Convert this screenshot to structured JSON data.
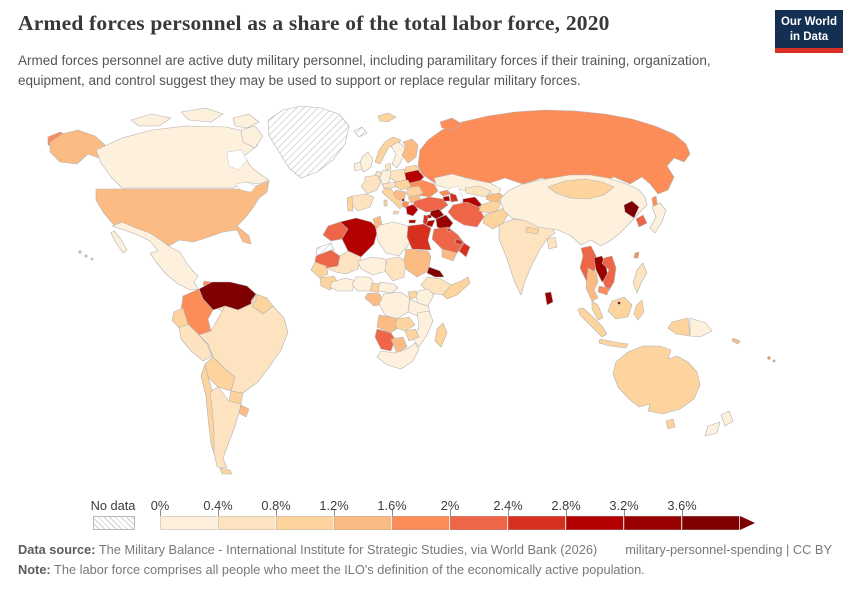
{
  "header": {
    "title": "Armed forces personnel as a share of the total labor force, 2020",
    "subtitle": "Armed forces personnel are active duty military personnel, including paramilitary forces if their training, organization, equipment, and control suggest they may be used to support or replace regular military forces.",
    "logo": {
      "line1": "Our World",
      "line2": "in Data",
      "bg": "#132f52",
      "accent": "#d93025"
    }
  },
  "legend": {
    "no_data_label": "No data",
    "tick_labels": [
      "0%",
      "0.4%",
      "0.8%",
      "1.2%",
      "1.6%",
      "2%",
      "2.4%",
      "2.8%",
      "3.2%",
      "3.6%"
    ],
    "colors": [
      "#fdf0dc",
      "#fde3c0",
      "#fdd49e",
      "#fdbb84",
      "#fc8d59",
      "#ef6548",
      "#d7301f",
      "#b30000",
      "#990000",
      "#7f0000"
    ]
  },
  "footer": {
    "source_prefix": "Data source:",
    "source_text": " The Military Balance - International Institute for Strategic Studies, via World Bank (2026)",
    "rights": "military-personnel-spending | CC BY",
    "note_prefix": "Note:",
    "note_text": " The labor force comprises all people who meet the ILO's definition of the economically active population."
  },
  "chart_data": {
    "type": "heatmap",
    "variant": "choropleth-world-map",
    "title": "Armed forces personnel as a share of the total labor force, 2020",
    "unit": "% of total labor force",
    "bins": [
      "0–0.4%",
      "0.4–0.8%",
      "0.8–1.2%",
      "1.2–1.6%",
      "1.6–2%",
      "2–2.4%",
      "2.4–2.8%",
      "2.8–3.2%",
      "3.2–3.6%",
      "3.6%+"
    ],
    "legend_position": "bottom",
    "no_data_pattern": "diagonal-hatch",
    "regions": {
      "russia": {
        "name": "Russia",
        "bin": 4
      },
      "canada": {
        "name": "Canada",
        "bin": 0
      },
      "greenland": {
        "name": "Greenland",
        "no_data": true
      },
      "iceland": {
        "name": "Iceland",
        "no_data": true
      },
      "alaska": {
        "name": "United States (Alaska)",
        "bin": 3
      },
      "usa": {
        "name": "United States",
        "bin": 3
      },
      "mexico": {
        "name": "Mexico",
        "bin": 0
      },
      "central-america": {
        "name": "Central America",
        "bin": 1
      },
      "el-salvador": {
        "name": "El Salvador",
        "bin": 4
      },
      "cuba": {
        "name": "Cuba",
        "bin": 4
      },
      "hispaniola": {
        "name": "Haiti / Dominican Republic",
        "bin": 2
      },
      "lesser-antilles": {
        "name": "Lesser Antilles",
        "bin": 2
      },
      "venezuela": {
        "name": "Venezuela",
        "bin": 9
      },
      "colombia": {
        "name": "Colombia",
        "bin": 4
      },
      "guyanas": {
        "name": "Guyana / Suriname",
        "bin": 2
      },
      "ecuador": {
        "name": "Ecuador",
        "bin": 2
      },
      "peru": {
        "name": "Peru",
        "bin": 1
      },
      "brazil": {
        "name": "Brazil",
        "bin": 1
      },
      "bolivia": {
        "name": "Bolivia",
        "bin": 2
      },
      "paraguay": {
        "name": "Paraguay",
        "bin": 2
      },
      "uruguay": {
        "name": "Uruguay",
        "bin": 3
      },
      "chile": {
        "name": "Chile",
        "bin": 2
      },
      "argentina": {
        "name": "Argentina",
        "bin": 1
      },
      "uk": {
        "name": "United Kingdom",
        "bin": 0
      },
      "ireland": {
        "name": "Ireland",
        "bin": 0
      },
      "norway": {
        "name": "Norway",
        "bin": 2
      },
      "sweden": {
        "name": "Sweden",
        "bin": 0
      },
      "finland": {
        "name": "Finland",
        "bin": 3
      },
      "denmark": {
        "name": "Denmark",
        "bin": 1
      },
      "baltics": {
        "name": "Baltic states",
        "bin": 2
      },
      "belarus": {
        "name": "Belarus",
        "bin": 7
      },
      "ukraine": {
        "name": "Ukraine",
        "bin": 4
      },
      "poland": {
        "name": "Poland",
        "bin": 1
      },
      "germany": {
        "name": "Germany",
        "bin": 0
      },
      "benelux": {
        "name": "Benelux",
        "bin": 1
      },
      "france": {
        "name": "France",
        "bin": 1
      },
      "spain": {
        "name": "Spain",
        "bin": 1
      },
      "portugal": {
        "name": "Portugal",
        "bin": 2
      },
      "italy": {
        "name": "Italy",
        "bin": 2
      },
      "alpine": {
        "name": "Switzerland / Austria",
        "bin": 1
      },
      "central-europe": {
        "name": "Czechia / Slovakia / Hungary",
        "bin": 2
      },
      "romania": {
        "name": "Romania",
        "bin": 2
      },
      "bulgaria": {
        "name": "Bulgaria",
        "bin": 3
      },
      "balkans": {
        "name": "Serbia / Bosnia / Croatia",
        "bin": 3
      },
      "albania": {
        "name": "Albania / North Macedonia",
        "bin": 4
      },
      "montenegro": {
        "name": "Montenegro",
        "bin": 9
      },
      "greece": {
        "name": "Greece",
        "bin": 7
      },
      "kazakhstan": {
        "name": "Kazakhstan",
        "bin": 0
      },
      "uzbekistan": {
        "name": "Uzbekistan",
        "bin": 1
      },
      "kyrgyzstan": {
        "name": "Kyrgyzstan / Tajikistan",
        "bin": 3
      },
      "turkmenistan": {
        "name": "Turkmenistan",
        "bin": 7
      },
      "turkey": {
        "name": "Turkey",
        "bin": 5
      },
      "cyprus": {
        "name": "Cyprus",
        "bin": 7
      },
      "georgia": {
        "name": "Georgia",
        "bin": 4
      },
      "armenia": {
        "name": "Armenia",
        "bin": 7
      },
      "azerbaijan": {
        "name": "Azerbaijan",
        "bin": 6
      },
      "syria": {
        "name": "Syria",
        "bin": 8
      },
      "iraq": {
        "name": "Iraq",
        "bin": 8
      },
      "lebanon-israel": {
        "name": "Israel / Lebanon",
        "bin": 6
      },
      "jordan": {
        "name": "Jordan",
        "bin": 7
      },
      "iran": {
        "name": "Iran",
        "bin": 5
      },
      "saudi-arabia": {
        "name": "Saudi Arabia",
        "bin": 5
      },
      "yemen": {
        "name": "Yemen",
        "bin": 3
      },
      "oman": {
        "name": "Oman",
        "bin": 6
      },
      "uae": {
        "name": "United Arab Emirates",
        "bin": 6
      },
      "kuwait": {
        "name": "Kuwait",
        "bin": 6
      },
      "morocco": {
        "name": "Morocco",
        "bin": 5
      },
      "western-sahara": {
        "name": "Western Sahara",
        "no_data": true
      },
      "algeria": {
        "name": "Algeria",
        "bin": 7
      },
      "tunisia": {
        "name": "Tunisia",
        "bin": 3
      },
      "libya": {
        "name": "Libya",
        "bin": 0
      },
      "egypt": {
        "name": "Egypt",
        "bin": 6
      },
      "mauritania": {
        "name": "Mauritania",
        "bin": 5
      },
      "mali": {
        "name": "Mali",
        "bin": 1
      },
      "niger": {
        "name": "Niger",
        "bin": 0
      },
      "chad": {
        "name": "Chad",
        "bin": 1
      },
      "sudan": {
        "name": "Sudan",
        "bin": 3
      },
      "eritrea": {
        "name": "Eritrea",
        "bin": 9
      },
      "ethiopia": {
        "name": "Ethiopia",
        "bin": 1
      },
      "somalia": {
        "name": "Somalia",
        "bin": 2
      },
      "senegal": {
        "name": "Senegal",
        "bin": 2
      },
      "guinea": {
        "name": "Guinea",
        "bin": 2
      },
      "west-africa": {
        "name": "West African coast",
        "bin": 0
      },
      "nigeria": {
        "name": "Nigeria",
        "bin": 0
      },
      "cameroon": {
        "name": "Cameroon",
        "bin": 2
      },
      "central-african-republic": {
        "name": "Central African Republic",
        "bin": 0
      },
      "gabon-congo": {
        "name": "Gabon / Congo",
        "bin": 3
      },
      "drc": {
        "name": "Democratic Republic of Congo",
        "bin": 0
      },
      "uganda": {
        "name": "Uganda",
        "bin": 2
      },
      "kenya": {
        "name": "Kenya",
        "bin": 0
      },
      "tanzania": {
        "name": "Tanzania",
        "bin": 0
      },
      "angola": {
        "name": "Angola",
        "bin": 3
      },
      "zambia": {
        "name": "Zambia",
        "bin": 2
      },
      "mozambique": {
        "name": "Mozambique",
        "bin": 0
      },
      "zimbabwe": {
        "name": "Zimbabwe",
        "bin": 2
      },
      "namibia": {
        "name": "Namibia",
        "bin": 5
      },
      "botswana": {
        "name": "Botswana",
        "bin": 3
      },
      "south-africa": {
        "name": "South Africa",
        "bin": 0
      },
      "madagascar": {
        "name": "Madagascar",
        "bin": 2
      },
      "afghanistan": {
        "name": "Afghanistan",
        "bin": 2
      },
      "pakistan": {
        "name": "Pakistan",
        "bin": 2
      },
      "india": {
        "name": "India",
        "bin": 1
      },
      "nepal": {
        "name": "Nepal",
        "bin": 2
      },
      "bangladesh": {
        "name": "Bangladesh",
        "bin": 1
      },
      "sri-lanka": {
        "name": "Sri Lanka",
        "bin": 8
      },
      "china": {
        "name": "China",
        "bin": 0
      },
      "mongolia": {
        "name": "Mongolia",
        "bin": 2
      },
      "north-korea": {
        "name": "North Korea",
        "bin": 9
      },
      "south-korea": {
        "name": "South Korea",
        "bin": 5
      },
      "japan": {
        "name": "Japan",
        "bin": 0
      },
      "taiwan": {
        "name": "Taiwan",
        "bin": 4
      },
      "myanmar": {
        "name": "Myanmar",
        "bin": 5
      },
      "laos": {
        "name": "Laos",
        "bin": 8
      },
      "thailand": {
        "name": "Thailand",
        "bin": 3
      },
      "vietnam": {
        "name": "Vietnam",
        "bin": 5
      },
      "cambodia": {
        "name": "Cambodia",
        "bin": 4
      },
      "malaysia": {
        "name": "Malaysia",
        "bin": 2
      },
      "indonesia": {
        "name": "Indonesia",
        "bin": 2
      },
      "brunei": {
        "name": "Brunei",
        "bin": 9
      },
      "philippines": {
        "name": "Philippines",
        "bin": 1
      },
      "papua-new-guinea": {
        "name": "Papua New Guinea",
        "bin": 0
      },
      "australia": {
        "name": "Australia",
        "bin": 2
      },
      "new-zealand": {
        "name": "New Zealand",
        "bin": 0
      },
      "fiji": {
        "name": "Fiji",
        "bin": 4
      },
      "new-caledonia": {
        "name": "New Caledonia",
        "bin": 3
      }
    }
  }
}
